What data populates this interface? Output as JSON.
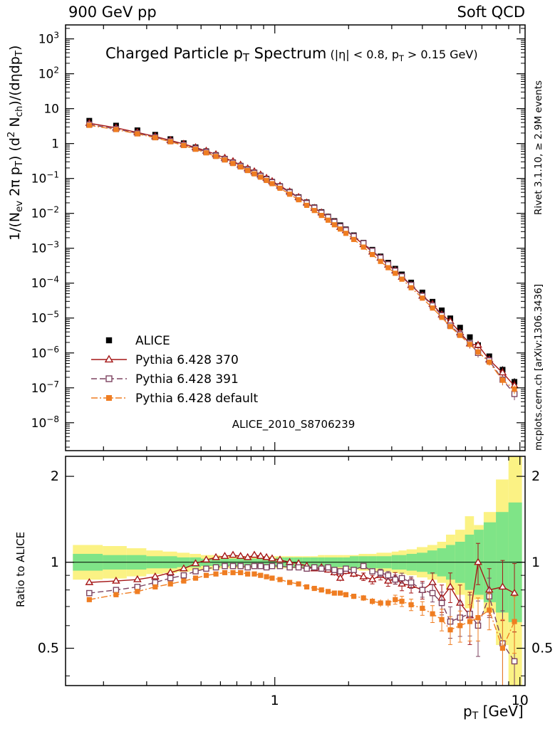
{
  "header": {
    "left": "900 GeV pp",
    "right": "Soft QCD"
  },
  "labels": {
    "title": "Charged Particle p_{T} Spectrum",
    "title_note": "(|η| < 0.8, p_{T} > 0.15 GeV)",
    "y_main": "1/(N_{ev} 2π p_{T}) (d^{2} N_{ch})/(dηdp_{T})",
    "y_ratio": "Ratio to ALICE",
    "x": "p_{T} [GeV]",
    "watermark": "ALICE_2010_S8706239",
    "note_right_top": "Rivet 3.1.10, ≥ 2.9M events",
    "note_right_bottom": "mcplots.cern.ch [arXiv:1306.3436]"
  },
  "chart_data": {
    "type": "scatter",
    "subtype": "log-log pT spectrum with ratio panel",
    "x_label": "p_T [GeV]",
    "x_range": [
      0.14,
      10.5
    ],
    "y_range_exp": [
      -8.8,
      3.4
    ],
    "ratio_range": [
      0.37,
      2.35
    ],
    "x": [
      0.175,
      0.225,
      0.275,
      0.325,
      0.375,
      0.425,
      0.475,
      0.525,
      0.575,
      0.625,
      0.675,
      0.725,
      0.775,
      0.825,
      0.875,
      0.925,
      0.975,
      1.05,
      1.15,
      1.25,
      1.35,
      1.45,
      1.55,
      1.65,
      1.75,
      1.85,
      1.95,
      2.1,
      2.3,
      2.5,
      2.7,
      2.9,
      3.1,
      3.3,
      3.6,
      4.0,
      4.4,
      4.8,
      5.2,
      5.7,
      6.25,
      6.75,
      7.5,
      8.5,
      9.5
    ],
    "series": [
      {
        "name": "ALICE",
        "marker": "square-filled",
        "color": "#000000",
        "values": [
          4.5,
          3.27,
          2.4,
          1.79,
          1.34,
          1.02,
          0.779,
          0.602,
          0.469,
          0.368,
          0.291,
          0.232,
          0.185,
          0.149,
          0.121,
          0.0985,
          0.0806,
          0.0603,
          0.0416,
          0.0292,
          0.0207,
          0.0149,
          0.0109,
          0.00807,
          0.00603,
          0.00455,
          0.00347,
          0.00235,
          0.00144,
          0.000905,
          0.000583,
          0.000385,
          0.000259,
          0.000178,
          0.000104,
          5.39e-05,
          2.93e-05,
          1.66e-05,
          9.8e-06,
          5.3e-06,
          2.83e-06,
          1.67e-06,
          8e-07,
          3.3e-07,
          1.48e-07
        ]
      },
      {
        "name": "Pythia 6.428 370",
        "marker": "triangle-open",
        "line": "solid",
        "color": "#a51717",
        "ratio_to_alice": [
          0.85,
          0.86,
          0.87,
          0.89,
          0.92,
          0.95,
          0.99,
          1.02,
          1.04,
          1.05,
          1.06,
          1.05,
          1.04,
          1.06,
          1.05,
          1.04,
          1.03,
          1.02,
          1.0,
          0.99,
          0.97,
          0.95,
          0.96,
          0.94,
          0.92,
          0.88,
          0.93,
          0.91,
          0.89,
          0.87,
          0.9,
          0.86,
          0.88,
          0.84,
          0.83,
          0.8,
          0.85,
          0.75,
          0.82,
          0.72,
          0.65,
          1.0,
          0.8,
          0.82,
          0.78
        ]
      },
      {
        "name": "Pythia 6.428 391",
        "marker": "square-open",
        "line": "dash",
        "color": "#7d4360",
        "ratio_to_alice": [
          0.78,
          0.8,
          0.82,
          0.85,
          0.88,
          0.9,
          0.93,
          0.95,
          0.96,
          0.97,
          0.97,
          0.97,
          0.96,
          0.97,
          0.97,
          0.96,
          0.97,
          0.97,
          0.96,
          0.96,
          0.95,
          0.96,
          0.95,
          0.96,
          0.94,
          0.93,
          0.95,
          0.94,
          0.97,
          0.93,
          0.92,
          0.9,
          0.87,
          0.88,
          0.85,
          0.8,
          0.78,
          0.72,
          0.62,
          0.64,
          0.66,
          0.6,
          0.76,
          0.52,
          0.45
        ]
      },
      {
        "name": "Pythia 6.428 default",
        "marker": "square-filled",
        "line": "dashdot",
        "color": "#ef7d22",
        "ratio_to_alice": [
          0.74,
          0.77,
          0.79,
          0.82,
          0.84,
          0.86,
          0.88,
          0.9,
          0.91,
          0.92,
          0.92,
          0.92,
          0.91,
          0.91,
          0.9,
          0.89,
          0.88,
          0.87,
          0.85,
          0.84,
          0.82,
          0.81,
          0.8,
          0.79,
          0.78,
          0.78,
          0.77,
          0.76,
          0.75,
          0.73,
          0.72,
          0.72,
          0.74,
          0.73,
          0.71,
          0.69,
          0.66,
          0.63,
          0.58,
          0.6,
          0.62,
          0.64,
          0.68,
          0.5,
          0.62
        ]
      }
    ],
    "ratio_err": [
      0.012,
      0.011,
      0.011,
      0.011,
      0.011,
      0.011,
      0.011,
      0.011,
      0.011,
      0.011,
      0.011,
      0.011,
      0.011,
      0.011,
      0.011,
      0.011,
      0.011,
      0.012,
      0.012,
      0.012,
      0.013,
      0.013,
      0.014,
      0.014,
      0.015,
      0.015,
      0.016,
      0.016,
      0.018,
      0.02,
      0.022,
      0.024,
      0.027,
      0.03,
      0.033,
      0.038,
      0.045,
      0.055,
      0.065,
      0.075,
      0.09,
      0.11,
      0.1,
      0.13,
      0.14
    ],
    "bands": {
      "yellow": {
        "color": "#fbf284",
        "k": [
          1.15,
          1.14,
          1.12,
          1.1,
          1.09,
          1.08,
          1.07,
          1.06,
          1.06,
          1.05,
          1.05,
          1.05,
          1.05,
          1.05,
          1.05,
          1.05,
          1.05,
          1.05,
          1.05,
          1.05,
          1.05,
          1.05,
          1.06,
          1.06,
          1.06,
          1.06,
          1.06,
          1.06,
          1.07,
          1.07,
          1.08,
          1.08,
          1.09,
          1.1,
          1.11,
          1.13,
          1.15,
          1.18,
          1.25,
          1.3,
          1.45,
          1.35,
          1.5,
          1.95,
          2.7
        ]
      },
      "green": {
        "color": "#7fe487",
        "k": [
          1.07,
          1.06,
          1.06,
          1.05,
          1.05,
          1.04,
          1.04,
          1.03,
          1.03,
          1.03,
          1.03,
          1.03,
          1.03,
          1.03,
          1.03,
          1.03,
          1.03,
          1.04,
          1.04,
          1.04,
          1.04,
          1.04,
          1.04,
          1.04,
          1.04,
          1.04,
          1.04,
          1.05,
          1.05,
          1.05,
          1.05,
          1.05,
          1.06,
          1.06,
          1.07,
          1.08,
          1.1,
          1.12,
          1.15,
          1.18,
          1.25,
          1.3,
          1.38,
          1.5,
          1.62
        ]
      }
    },
    "legend_position": "middle-left of main panel",
    "grid": false
  }
}
